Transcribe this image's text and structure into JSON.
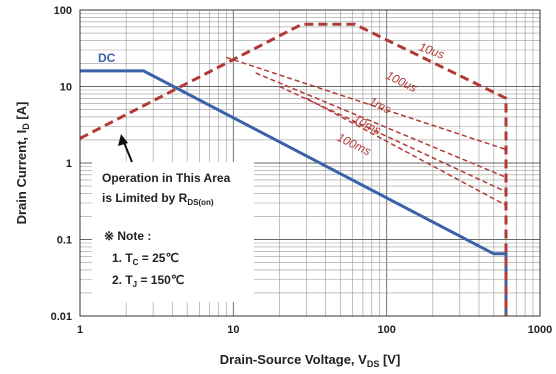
{
  "chart_data": {
    "type": "line",
    "xscale": "log",
    "yscale": "log",
    "xlim": [
      1,
      1000
    ],
    "ylim": [
      0.01,
      100
    ],
    "xticks": [
      "1",
      "10",
      "100",
      "1000"
    ],
    "yticks": [
      "100",
      "10",
      "1",
      "0.1",
      "0.01"
    ],
    "xlabel_parts": {
      "main": "Drain-Source Voltage, V",
      "sub": "DS",
      "tail": " [V]"
    },
    "ylabel_parts": {
      "main": "Drain Current, I",
      "sub": "D",
      "tail": " [A]"
    },
    "grid": true,
    "colors": {
      "dc": "#3a62a8",
      "pulse": "#b23a36",
      "grid": "#9a9a9a"
    },
    "series": [
      {
        "name": "DC",
        "style": "solid",
        "color": "#3a62a8",
        "x": [
          1,
          2.6,
          500,
          600,
          600
        ],
        "y": [
          16,
          16,
          0.065,
          0.065,
          0.01
        ]
      },
      {
        "name": "10us",
        "style": "dashed",
        "color": "#b23a36",
        "x": [
          1,
          28,
          62,
          600,
          600
        ],
        "y": [
          2.1,
          65,
          65,
          7,
          0.01
        ]
      },
      {
        "name": "100us",
        "style": "dashed",
        "color": "#b23a36",
        "x": [
          9,
          600
        ],
        "y": [
          24,
          1.5
        ]
      },
      {
        "name": "1ms",
        "style": "dashed",
        "color": "#b23a36",
        "x": [
          14,
          600
        ],
        "y": [
          15,
          0.65
        ]
      },
      {
        "name": "10ms",
        "style": "dashed",
        "color": "#b23a36",
        "x": [
          20,
          600
        ],
        "y": [
          10,
          0.42
        ]
      },
      {
        "name": "100ms",
        "style": "dashed",
        "color": "#b23a36",
        "x": [
          30,
          600
        ],
        "y": [
          7,
          0.28
        ]
      }
    ],
    "annotations": {
      "dc_label": "DC",
      "rds_line1": "Operation in This Area",
      "rds_line2_main": "is Limited by R",
      "rds_line2_sub": "DS(on)",
      "note_title": "※ Note :",
      "note1_main": "1. T",
      "note1_sub": "C",
      "note1_tail": " = 25℃",
      "note2_main": "2. T",
      "note2_sub": "J",
      "note2_tail": " = 150℃"
    }
  }
}
